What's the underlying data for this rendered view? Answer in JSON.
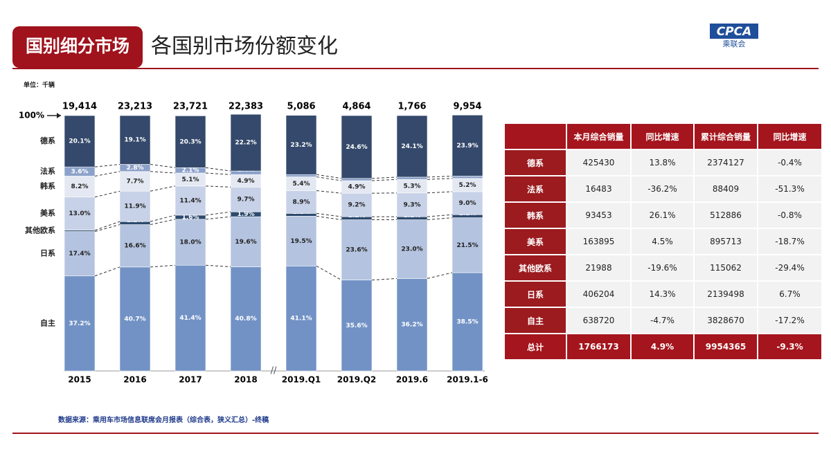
{
  "header": {
    "section": "国别细分市场",
    "title": "各国别市场份额变化",
    "logo": "CPCA",
    "logo_sub": "乘联会"
  },
  "chart_data": {
    "type": "stacked_bar",
    "unit": "单位：千辆",
    "categories": [
      "2015",
      "2016",
      "2017",
      "2018",
      "2019.Q1",
      "2019.Q2",
      "2019.6",
      "2019.1-6"
    ],
    "axis_break_after": "2018",
    "ylim": [
      0,
      100
    ],
    "yticks": [
      {
        "value": 100,
        "label": "100%"
      }
    ],
    "totals": {
      "values": [
        19414,
        23213,
        23721,
        22383,
        5086,
        4864,
        1766,
        9954
      ],
      "value_labels": [
        "19,414",
        "23,213",
        "23,721",
        "22,383",
        "5,086",
        "4,864",
        "1,766",
        "9,954"
      ]
    },
    "series": [
      {
        "name": "自主",
        "color": "#7292c5",
        "values": [
          37.2,
          40.7,
          41.4,
          40.8,
          41.1,
          35.6,
          36.2,
          38.5
        ],
        "value_labels": [
          "37.2%",
          "40.7%",
          "41.4%",
          "40.8%",
          "41.1%",
          "35.6%",
          "36.2%",
          "38.5%"
        ]
      },
      {
        "name": "日系",
        "color": "#b4c3df",
        "values": [
          17.4,
          16.6,
          18.0,
          19.6,
          19.5,
          23.6,
          23.0,
          21.5
        ],
        "value_labels": [
          "17.4%",
          "16.6%",
          "18.0%",
          "19.6%",
          "19.5%",
          "23.6%",
          "23.0%",
          "21.5%"
        ]
      },
      {
        "name": "其他欧系",
        "color": "#2d4a6e",
        "values": [
          0.5,
          1.2,
          1.6,
          1.9,
          1.1,
          1.2,
          1.2,
          1.2
        ],
        "value_labels": [
          "0.5%",
          "1.2%",
          "1.6%",
          "1.9%",
          "1.1%",
          "1.2%",
          "1.2%",
          "1.2%"
        ]
      },
      {
        "name": "美系",
        "color": "#c7d1e7",
        "values": [
          13.0,
          11.9,
          11.4,
          9.7,
          8.9,
          9.2,
          9.3,
          9.0
        ],
        "value_labels": [
          "13.0%",
          "11.9%",
          "11.4%",
          "9.7%",
          "8.9%",
          "9.2%",
          "9.3%",
          "9.0%"
        ]
      },
      {
        "name": "韩系",
        "color": "#e3e8f2",
        "values": [
          8.2,
          7.7,
          5.1,
          4.9,
          5.4,
          4.9,
          5.3,
          5.2
        ],
        "value_labels": [
          "8.2%",
          "7.7%",
          "5.1%",
          "4.9%",
          "5.4%",
          "4.9%",
          "5.3%",
          "5.2%"
        ]
      },
      {
        "name": "法系",
        "color": "#8ba1c9",
        "values": [
          3.6,
          2.8,
          2.1,
          1.4,
          0.9,
          0.9,
          0.9,
          0.9
        ],
        "value_labels": [
          "3.6%",
          "2.8%",
          "2.1%",
          "1.4%",
          "0.9%",
          "0.9%",
          "0.9%",
          "0.9%"
        ]
      },
      {
        "name": "德系",
        "color": "#34496b",
        "values": [
          20.1,
          19.1,
          20.3,
          22.2,
          23.2,
          24.6,
          24.1,
          23.9
        ],
        "value_labels": [
          "20.1%",
          "19.1%",
          "20.3%",
          "22.2%",
          "23.2%",
          "24.6%",
          "24.1%",
          "23.9%"
        ]
      }
    ]
  },
  "table": {
    "columns": [
      "本月综合销量",
      "同比增速",
      "累计综合销量",
      "同比增速"
    ],
    "rows": [
      [
        "德系",
        "425430",
        "13.8%",
        "2374127",
        "-0.4%"
      ],
      [
        "法系",
        "16483",
        "-36.2%",
        "88409",
        "-51.3%"
      ],
      [
        "韩系",
        "93453",
        "26.1%",
        "512886",
        "-0.8%"
      ],
      [
        "美系",
        "163895",
        "4.5%",
        "895713",
        "-18.7%"
      ],
      [
        "其他欧系",
        "21988",
        "-19.6%",
        "115062",
        "-29.4%"
      ],
      [
        "日系",
        "406204",
        "14.3%",
        "2139498",
        "6.7%"
      ],
      [
        "自主",
        "638720",
        "-4.7%",
        "3828670",
        "-17.2%"
      ]
    ],
    "total": [
      "总计",
      "1766173",
      "4.9%",
      "9954365",
      "-9.3%"
    ]
  },
  "source": "数据来源：乘用车市场信息联席会月报表（综合表，狭义汇总）-终稿"
}
